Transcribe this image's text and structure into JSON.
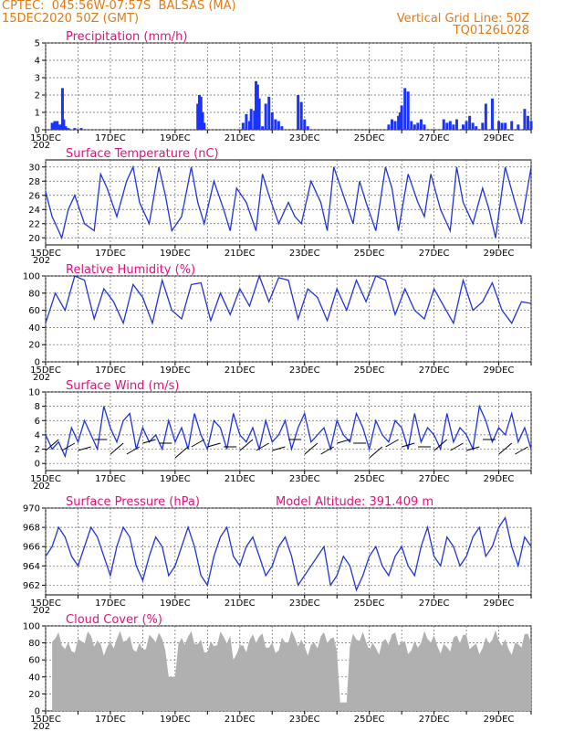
{
  "header": {
    "line1": "CPTEC:  045:56W-07:57S  BALSAS (MA)",
    "line2": "15DEC2020 50Z (GMT)",
    "right1": "Vertical Grid Line: 50Z",
    "right2": "TQ0126L028"
  },
  "x_axis": {
    "labels": [
      "15DEC",
      "17DEC",
      "19DEC",
      "21DEC",
      "23DEC",
      "25DEC",
      "27DEC",
      "29DEC"
    ],
    "under_label": "202"
  },
  "colors": {
    "line": "#2233dd",
    "bar": "#1a33ff",
    "cloud": "#b0b0b0",
    "title": "#e0137a",
    "header": "#e07b16"
  },
  "chart_data": [
    {
      "type": "bar",
      "title": "Precipitation (mm/h)",
      "ylim": [
        0,
        5
      ],
      "yticks": [
        0,
        1,
        2,
        3,
        4,
        5
      ],
      "series": [
        {
          "x": [
            0.2,
            0.28,
            0.36,
            0.44,
            0.52,
            0.56,
            0.62,
            0.7,
            0.9,
            1.1,
            4.7,
            4.75,
            4.8,
            4.85,
            4.9,
            6.1,
            6.2,
            6.3,
            6.35,
            6.45,
            6.5,
            6.55,
            6.6,
            6.7,
            6.8,
            6.9,
            7.0,
            7.1,
            7.2,
            7.3,
            7.8,
            7.9,
            8.0,
            8.1,
            10.6,
            10.7,
            10.8,
            10.9,
            10.95,
            11.0,
            11.1,
            11.2,
            11.3,
            11.4,
            11.5,
            11.6,
            11.7,
            12.3,
            12.4,
            12.5,
            12.6,
            12.7,
            12.9,
            13.0,
            13.1,
            13.2,
            13.3,
            13.5,
            13.6,
            13.8,
            14.0,
            14.1,
            14.2,
            14.4,
            14.6,
            14.8,
            14.9,
            15.0
          ],
          "values": [
            0.4,
            0.5,
            0.5,
            0.3,
            2.4,
            0.6,
            0.2,
            0.1,
            0.1,
            0.1,
            1.5,
            2.0,
            1.9,
            1.0,
            0.4,
            0.4,
            0.9,
            0.5,
            1.2,
            1.1,
            2.8,
            2.6,
            1.8,
            0.2,
            1.5,
            1.9,
            1.0,
            0.6,
            0.5,
            0.2,
            2.0,
            1.6,
            0.6,
            0.2,
            0.3,
            0.6,
            0.5,
            0.8,
            1.0,
            1.4,
            2.4,
            2.2,
            0.5,
            0.3,
            0.4,
            0.6,
            0.3,
            0.6,
            0.4,
            0.5,
            0.3,
            0.6,
            0.3,
            0.5,
            0.8,
            0.4,
            0.2,
            0.4,
            1.5,
            1.8,
            0.5,
            0.4,
            0.4,
            0.5,
            0.3,
            1.2,
            0.8,
            0.5
          ]
        }
      ]
    },
    {
      "type": "line",
      "title": "Surface Temperature (nC)",
      "ylim": [
        19,
        31
      ],
      "yticks": [
        20,
        22,
        24,
        26,
        28,
        30
      ],
      "series": [
        {
          "x": [
            0,
            0.2,
            0.4,
            0.5,
            0.7,
            0.9,
            1.2,
            1.5,
            1.7,
            1.9,
            2.2,
            2.5,
            2.7,
            2.9,
            3.2,
            3.5,
            3.7,
            3.9,
            4.2,
            4.5,
            4.7,
            4.9,
            5.2,
            5.5,
            5.7,
            5.9,
            6.2,
            6.5,
            6.7,
            6.9,
            7.2,
            7.5,
            7.7,
            7.9,
            8.2,
            8.5,
            8.7,
            8.9,
            9.2,
            9.5,
            9.7,
            9.9,
            10.2,
            10.5,
            10.7,
            10.9,
            11.2,
            11.5,
            11.7,
            11.9,
            12.2,
            12.5,
            12.7,
            12.9,
            13.2,
            13.5,
            13.7,
            13.9,
            14.2,
            14.5,
            14.7,
            15.0
          ],
          "values": [
            26.5,
            23,
            21,
            20,
            24,
            26,
            22,
            21,
            29,
            27,
            23,
            28,
            30,
            25,
            22,
            30,
            26,
            21,
            23,
            30,
            25,
            22,
            28,
            24,
            21,
            27,
            25,
            21,
            29,
            26,
            22,
            25,
            23,
            22,
            28,
            25,
            21,
            30,
            26,
            22,
            28,
            25,
            21,
            30,
            27,
            21,
            29,
            25,
            23,
            29,
            24,
            21,
            30,
            25,
            22,
            27,
            24,
            20,
            30,
            25,
            22,
            30
          ]
        }
      ]
    },
    {
      "type": "line",
      "title": "Relative Humidity (%)",
      "ylim": [
        0,
        100
      ],
      "yticks": [
        0,
        20,
        40,
        60,
        80,
        100
      ],
      "series": [
        {
          "x": [
            0,
            0.3,
            0.6,
            0.9,
            1.2,
            1.5,
            1.8,
            2.1,
            2.4,
            2.7,
            3.0,
            3.3,
            3.6,
            3.9,
            4.2,
            4.5,
            4.8,
            5.1,
            5.4,
            5.7,
            6.0,
            6.3,
            6.6,
            6.9,
            7.2,
            7.5,
            7.8,
            8.1,
            8.4,
            8.7,
            9.0,
            9.3,
            9.6,
            9.9,
            10.2,
            10.5,
            10.8,
            11.1,
            11.4,
            11.7,
            12.0,
            12.3,
            12.6,
            12.9,
            13.2,
            13.5,
            13.8,
            14.1,
            14.4,
            14.7,
            15.0
          ],
          "values": [
            45,
            80,
            60,
            100,
            95,
            50,
            85,
            70,
            45,
            90,
            75,
            45,
            95,
            60,
            50,
            90,
            92,
            48,
            80,
            55,
            85,
            65,
            100,
            70,
            98,
            95,
            50,
            85,
            75,
            48,
            85,
            60,
            95,
            70,
            100,
            95,
            55,
            85,
            60,
            50,
            85,
            65,
            45,
            95,
            60,
            70,
            92,
            60,
            45,
            70,
            68
          ]
        }
      ]
    },
    {
      "type": "line",
      "title": "Surface Wind (m/s)",
      "ylim": [
        -1,
        10
      ],
      "yticks": [
        0,
        2,
        4,
        6,
        8,
        10
      ],
      "series": [
        {
          "x": [
            0,
            0.2,
            0.4,
            0.6,
            0.8,
            1.0,
            1.2,
            1.4,
            1.6,
            1.8,
            2.0,
            2.2,
            2.4,
            2.6,
            2.8,
            3.0,
            3.2,
            3.4,
            3.6,
            3.8,
            4.0,
            4.2,
            4.4,
            4.6,
            4.8,
            5.0,
            5.2,
            5.4,
            5.6,
            5.8,
            6.0,
            6.2,
            6.4,
            6.6,
            6.8,
            7.0,
            7.2,
            7.4,
            7.6,
            7.8,
            8.0,
            8.2,
            8.4,
            8.6,
            8.8,
            9.0,
            9.2,
            9.4,
            9.6,
            9.8,
            10.0,
            10.2,
            10.4,
            10.6,
            10.8,
            11.0,
            11.2,
            11.4,
            11.6,
            11.8,
            12.0,
            12.2,
            12.4,
            12.6,
            12.8,
            13.0,
            13.2,
            13.4,
            13.6,
            13.8,
            14.0,
            14.2,
            14.4,
            14.6,
            14.8,
            15.0
          ],
          "values": [
            4,
            2,
            3,
            1,
            5,
            3,
            6,
            4,
            2,
            8,
            5,
            3,
            6,
            7,
            2,
            5,
            3,
            4,
            2,
            6,
            3,
            5,
            2,
            7,
            4,
            2,
            6,
            5,
            2,
            7,
            4,
            3,
            5,
            2,
            6,
            3,
            4,
            6,
            2,
            5,
            7,
            3,
            4,
            5,
            2,
            6,
            4,
            3,
            7,
            5,
            2,
            6,
            4,
            3,
            6,
            5,
            2,
            7,
            3,
            5,
            4,
            2,
            7,
            3,
            5,
            4,
            2,
            8,
            6,
            3,
            5,
            4,
            7,
            3,
            5,
            2
          ]
        }
      ]
    },
    {
      "type": "line",
      "title": "Surface Pressure (hPa)",
      "annotation": "Model Altitude: 391.409 m",
      "ylim": [
        961,
        970
      ],
      "yticks": [
        962,
        964,
        966,
        968,
        970
      ],
      "series": [
        {
          "x": [
            0,
            0.2,
            0.4,
            0.6,
            0.8,
            1.0,
            1.2,
            1.4,
            1.6,
            1.8,
            2.0,
            2.2,
            2.4,
            2.6,
            2.8,
            3.0,
            3.2,
            3.4,
            3.6,
            3.8,
            4.0,
            4.2,
            4.4,
            4.6,
            4.8,
            5.0,
            5.2,
            5.4,
            5.6,
            5.8,
            6.0,
            6.2,
            6.4,
            6.6,
            6.8,
            7.0,
            7.2,
            7.4,
            7.6,
            7.8,
            8.0,
            8.2,
            8.4,
            8.6,
            8.8,
            9.0,
            9.2,
            9.4,
            9.6,
            9.8,
            10.0,
            10.2,
            10.4,
            10.6,
            10.8,
            11.0,
            11.2,
            11.4,
            11.6,
            11.8,
            12.0,
            12.2,
            12.4,
            12.6,
            12.8,
            13.0,
            13.2,
            13.4,
            13.6,
            13.8,
            14.0,
            14.2,
            14.4,
            14.6,
            14.8,
            15.0
          ],
          "values": [
            965,
            966,
            968,
            967,
            965,
            964,
            966,
            968,
            967,
            965,
            963,
            966,
            968,
            967,
            964,
            962.5,
            965,
            967,
            966,
            963,
            964,
            966,
            968,
            966,
            963,
            962,
            965,
            967,
            968,
            965,
            964,
            966,
            967,
            965,
            963,
            964,
            966,
            967,
            965,
            962,
            963,
            964,
            965,
            966,
            962,
            963,
            965,
            964,
            961.5,
            963,
            965,
            966,
            964,
            963,
            965,
            966,
            964,
            963,
            966,
            968,
            965,
            964,
            967,
            966,
            964,
            965,
            967,
            968,
            965,
            966,
            968,
            969,
            966,
            964,
            967,
            966
          ]
        }
      ]
    },
    {
      "type": "bar",
      "title": "Cloud Cover (%)",
      "ylim": [
        0,
        100
      ],
      "yticks": [
        0,
        20,
        40,
        60,
        80,
        100
      ]
    }
  ]
}
